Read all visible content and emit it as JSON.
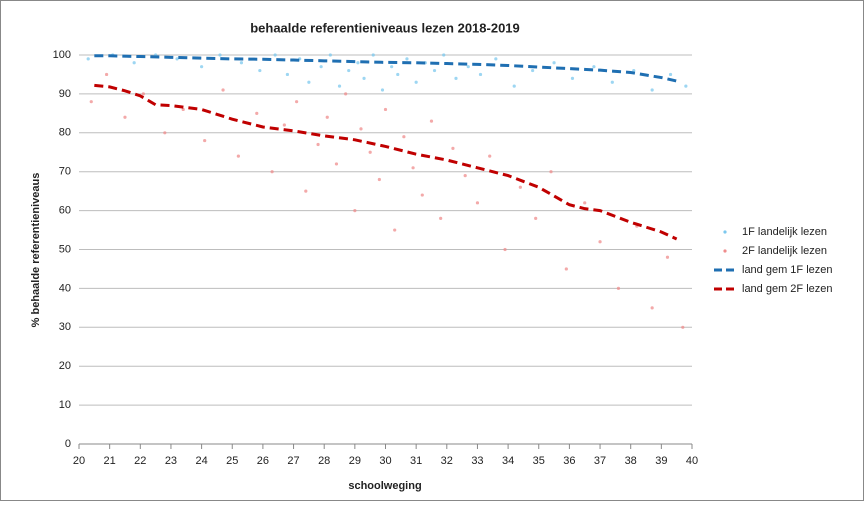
{
  "chart_data": {
    "type": "scatter",
    "title": "behaalde referentieniveaus lezen 2018-2019",
    "x_label": "schoolweging",
    "y_label": "% behaalde referentieniveaus",
    "xlim": [
      20,
      40
    ],
    "xticks": [
      20,
      21,
      22,
      23,
      24,
      25,
      26,
      27,
      28,
      29,
      30,
      31,
      32,
      33,
      34,
      35,
      36,
      37,
      38,
      39,
      40
    ],
    "ylim": [
      0,
      100
    ],
    "yticks": [
      0,
      10,
      20,
      30,
      40,
      50,
      60,
      70,
      80,
      90,
      100
    ],
    "grid": true,
    "legend": "right",
    "series": [
      {
        "name": "1F landelijk lezen",
        "type": "scatter",
        "color": "#7cc8ee",
        "x": [
          20.3,
          21.1,
          21.8,
          22.5,
          23.2,
          24.0,
          24.6,
          25.3,
          25.9,
          26.4,
          26.8,
          27.2,
          27.5,
          27.9,
          28.2,
          28.5,
          28.8,
          29.1,
          29.3,
          29.6,
          29.9,
          30.2,
          30.4,
          30.7,
          31.0,
          31.3,
          31.6,
          31.9,
          32.3,
          32.7,
          33.1,
          33.6,
          34.2,
          34.8,
          35.5,
          36.1,
          36.8,
          37.4,
          38.1,
          38.7,
          39.3,
          39.8
        ],
        "values": [
          99,
          100,
          98,
          100,
          99,
          97,
          100,
          98,
          96,
          100,
          95,
          99,
          93,
          97,
          100,
          92,
          96,
          98,
          94,
          100,
          91,
          97,
          95,
          99,
          93,
          98,
          96,
          100,
          94,
          97,
          95,
          99,
          92,
          96,
          98,
          94,
          97,
          93,
          96,
          91,
          95,
          92
        ]
      },
      {
        "name": "2F landelijk lezen",
        "type": "scatter",
        "color": "#ef8c8c",
        "x": [
          20.4,
          20.9,
          21.5,
          22.1,
          22.8,
          23.4,
          24.1,
          24.7,
          25.2,
          25.8,
          26.3,
          26.7,
          27.1,
          27.4,
          27.8,
          28.1,
          28.4,
          28.7,
          29.0,
          29.2,
          29.5,
          29.8,
          30.0,
          30.3,
          30.6,
          30.9,
          31.2,
          31.5,
          31.8,
          32.2,
          32.6,
          33.0,
          33.4,
          33.9,
          34.4,
          34.9,
          35.4,
          35.9,
          36.5,
          37.0,
          37.6,
          38.2,
          38.7,
          39.2,
          39.7
        ],
        "values": [
          88,
          95,
          84,
          90,
          80,
          86,
          78,
          91,
          74,
          85,
          70,
          82,
          88,
          65,
          77,
          84,
          72,
          90,
          60,
          81,
          75,
          68,
          86,
          55,
          79,
          71,
          64,
          83,
          58,
          76,
          69,
          62,
          74,
          50,
          66,
          58,
          70,
          45,
          62,
          52,
          40,
          56,
          35,
          48,
          30
        ]
      },
      {
        "name": "land gem 1F lezen",
        "type": "line",
        "color": "#1f6fb2",
        "x": [
          20.5,
          21,
          22,
          23,
          24,
          25,
          26,
          27,
          28,
          29,
          30,
          31,
          32,
          33,
          34,
          35,
          36,
          37,
          38,
          39,
          39.5
        ],
        "values": [
          99.8,
          99.8,
          99.6,
          99.4,
          99.2,
          99,
          98.9,
          98.7,
          98.5,
          98.3,
          98.1,
          98,
          97.8,
          97.6,
          97.3,
          96.9,
          96.5,
          96.1,
          95.5,
          94.2,
          93.3
        ]
      },
      {
        "name": "land gem 2F lezen",
        "type": "line",
        "color": "#c00000",
        "x": [
          20.5,
          21,
          21.5,
          22,
          22.5,
          23,
          24,
          25,
          26,
          27,
          28,
          29,
          30,
          31,
          32,
          33,
          34,
          34.5,
          35,
          36,
          36.5,
          37,
          38,
          39,
          39.5
        ],
        "values": [
          92.2,
          91.8,
          90.8,
          89.5,
          87.2,
          87,
          86,
          83.5,
          81.5,
          80.5,
          79.2,
          78.2,
          76.5,
          74.5,
          73,
          71,
          69,
          67.5,
          66,
          61.5,
          60.5,
          60,
          57,
          54.5,
          52.7
        ]
      }
    ]
  }
}
